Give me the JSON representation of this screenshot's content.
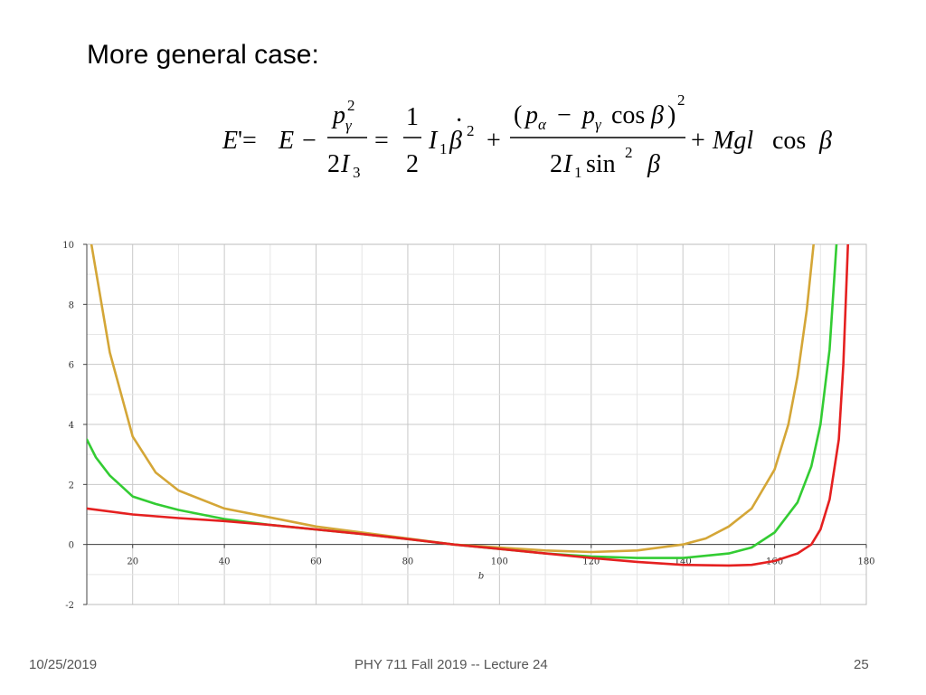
{
  "slide": {
    "title": "More general case:",
    "footer_date": "10/25/2019",
    "footer_center": "PHY 711  Fall 2019 -- Lecture 24",
    "page_number": "25"
  },
  "equation": {
    "lhs": "E' = E − p_γ² / (2I₃)",
    "rhs": "(1/2) I₁ β̇² + (p_α − p_γ cos β)² / (2I₁ sin² β) + Mgl cos β"
  },
  "chart_data": {
    "type": "line",
    "xlabel": "b",
    "ylabel": "",
    "xlim": [
      10,
      180
    ],
    "ylim": [
      -2,
      10
    ],
    "xticks": [
      20,
      40,
      60,
      80,
      100,
      120,
      140,
      160,
      180
    ],
    "yticks": [
      -2,
      0,
      2,
      4,
      6,
      8,
      10
    ],
    "grid": true,
    "series": [
      {
        "color": "#d4a637",
        "x": [
          11,
          15,
          20,
          25,
          30,
          40,
          50,
          60,
          70,
          80,
          90,
          100,
          110,
          120,
          130,
          140,
          145,
          150,
          155,
          160,
          163,
          165,
          167,
          168.5
        ],
        "y": [
          10,
          6.4,
          3.6,
          2.4,
          1.8,
          1.2,
          0.9,
          0.6,
          0.4,
          0.2,
          0.0,
          -0.1,
          -0.2,
          -0.25,
          -0.2,
          0.0,
          0.2,
          0.6,
          1.2,
          2.5,
          4.0,
          5.6,
          7.8,
          10
        ]
      },
      {
        "color": "#33cc33",
        "x": [
          10,
          12,
          15,
          20,
          25,
          30,
          40,
          50,
          60,
          70,
          80,
          90,
          100,
          110,
          120,
          130,
          140,
          150,
          155,
          160,
          165,
          168,
          170,
          172,
          173.5
        ],
        "y": [
          3.5,
          2.9,
          2.3,
          1.6,
          1.35,
          1.15,
          0.85,
          0.65,
          0.5,
          0.35,
          0.18,
          0.0,
          -0.15,
          -0.3,
          -0.4,
          -0.45,
          -0.45,
          -0.3,
          -0.1,
          0.4,
          1.4,
          2.6,
          4.0,
          6.5,
          10
        ]
      },
      {
        "color": "#e52020",
        "x": [
          10,
          20,
          30,
          40,
          50,
          60,
          70,
          80,
          90,
          100,
          110,
          120,
          130,
          140,
          150,
          155,
          160,
          165,
          168,
          170,
          172,
          174,
          175,
          176
        ],
        "y": [
          1.2,
          1.0,
          0.88,
          0.78,
          0.65,
          0.5,
          0.35,
          0.18,
          0.0,
          -0.15,
          -0.3,
          -0.45,
          -0.58,
          -0.68,
          -0.7,
          -0.68,
          -0.55,
          -0.3,
          0.0,
          0.5,
          1.5,
          3.5,
          6.0,
          10
        ]
      }
    ]
  }
}
